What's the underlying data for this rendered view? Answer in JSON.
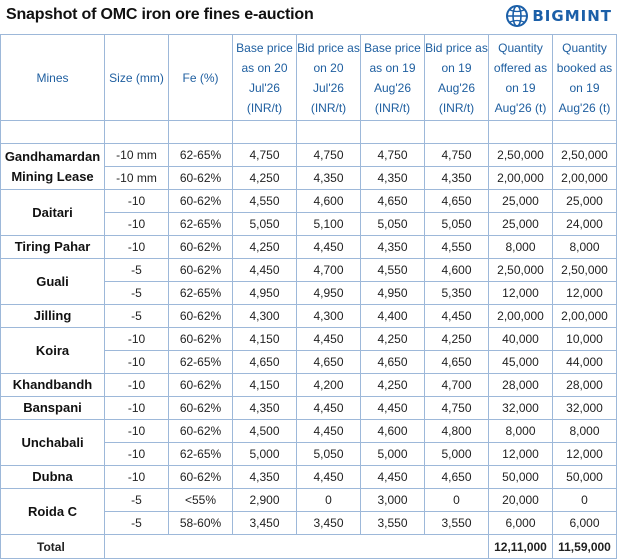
{
  "title": "Snapshot of OMC iron ore fines e-auction",
  "logo": {
    "text": "BIGMINT",
    "icon": "bigmint-globe-icon"
  },
  "headers": [
    "Mines",
    "Size (mm)",
    "Fe (%)",
    "Base price as on 20 Jul'26 (INR/t)",
    "Bid price as on 20 Jul'26 (INR/t)",
    "Base price as on 19 Aug'26 (INR/t)",
    "Bid price as on 19 Aug'26 (INR/t)",
    "Quantity offered as on 19 Aug'26 (t)",
    "Quantity booked as on 19 Aug'26 (t)"
  ],
  "mines": [
    {
      "name": "Gandhamardan Mining Lease",
      "rows": [
        [
          "-10 mm",
          "62-65%",
          "4,750",
          "4,750",
          "4,750",
          "4,750",
          "2,50,000",
          "2,50,000"
        ],
        [
          "-10 mm",
          "60-62%",
          "4,250",
          "4,350",
          "4,350",
          "4,350",
          "2,00,000",
          "2,00,000"
        ]
      ]
    },
    {
      "name": "Daitari",
      "rows": [
        [
          "-10",
          "60-62%",
          "4,550",
          "4,600",
          "4,650",
          "4,650",
          "25,000",
          "25,000"
        ],
        [
          "-10",
          "62-65%",
          "5,050",
          "5,100",
          "5,050",
          "5,050",
          "25,000",
          "24,000"
        ]
      ]
    },
    {
      "name": "Tiring Pahar",
      "rows": [
        [
          "-10",
          "60-62%",
          "4,250",
          "4,450",
          "4,350",
          "4,550",
          "8,000",
          "8,000"
        ]
      ]
    },
    {
      "name": "Guali",
      "rows": [
        [
          "-5",
          "60-62%",
          "4,450",
          "4,700",
          "4,550",
          "4,600",
          "2,50,000",
          "2,50,000"
        ],
        [
          "-5",
          "62-65%",
          "4,950",
          "4,950",
          "4,950",
          "5,350",
          "12,000",
          "12,000"
        ]
      ]
    },
    {
      "name": "Jilling",
      "rows": [
        [
          "-5",
          "60-62%",
          "4,300",
          "4,300",
          "4,400",
          "4,450",
          "2,00,000",
          "2,00,000"
        ]
      ]
    },
    {
      "name": "Koira",
      "rows": [
        [
          "-10",
          "60-62%",
          "4,150",
          "4,450",
          "4,250",
          "4,250",
          "40,000",
          "10,000"
        ],
        [
          "-10",
          "62-65%",
          "4,650",
          "4,650",
          "4,650",
          "4,650",
          "45,000",
          "44,000"
        ]
      ]
    },
    {
      "name": "Khandbandh",
      "rows": [
        [
          "-10",
          "60-62%",
          "4,150",
          "4,200",
          "4,250",
          "4,700",
          "28,000",
          "28,000"
        ]
      ]
    },
    {
      "name": "Banspani",
      "rows": [
        [
          "-10",
          "60-62%",
          "4,350",
          "4,450",
          "4,450",
          "4,750",
          "32,000",
          "32,000"
        ]
      ]
    },
    {
      "name": "Unchabali",
      "rows": [
        [
          "-10",
          "60-62%",
          "4,500",
          "4,450",
          "4,600",
          "4,800",
          "8,000",
          "8,000"
        ],
        [
          "-10",
          "62-65%",
          "5,000",
          "5,050",
          "5,000",
          "5,000",
          "12,000",
          "12,000"
        ]
      ]
    },
    {
      "name": "Dubna",
      "rows": [
        [
          "-10",
          "60-62%",
          "4,350",
          "4,450",
          "4,450",
          "4,650",
          "50,000",
          "50,000"
        ]
      ]
    },
    {
      "name": "Roida C",
      "rows": [
        [
          "-5",
          "<55%",
          "2,900",
          "0",
          "3,000",
          "0",
          "20,000",
          "0"
        ],
        [
          "-5",
          "58-60%",
          "3,450",
          "3,450",
          "3,550",
          "3,550",
          "6,000",
          "6,000"
        ]
      ]
    }
  ],
  "total": {
    "label": "Total",
    "offered": "12,11,000",
    "booked": "11,59,000"
  }
}
